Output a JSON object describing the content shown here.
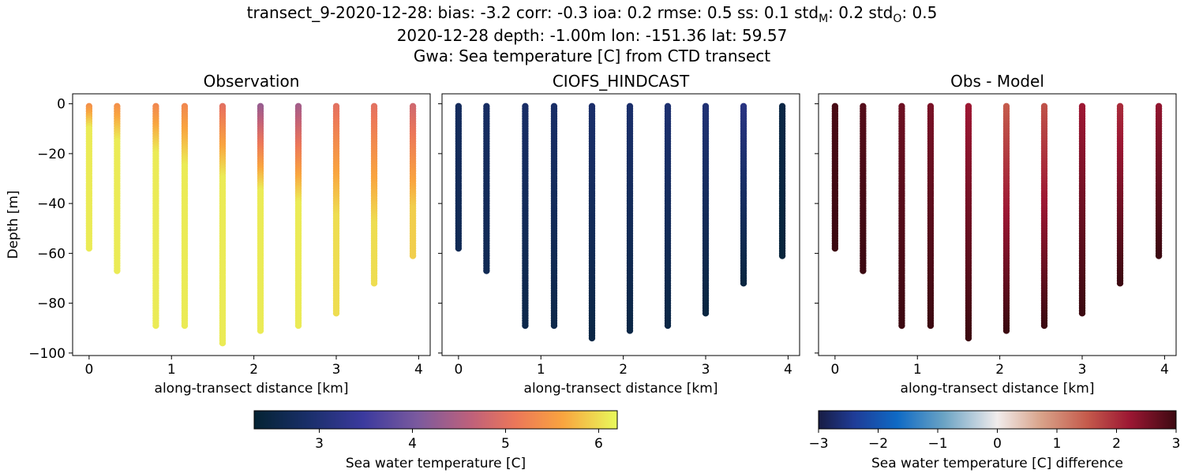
{
  "figure": {
    "title_prefix": "transect_9-2020-12-28: bias: -3.2  corr: -0.3  ioa: 0.2  rmse: 0.5  ss: 0.1  std",
    "title_sub_m": "M",
    "title_mid": ": 0.2  std",
    "title_sub_o": "O",
    "title_end": ": 0.5",
    "title_line2": "2020-12-28 depth: -1.00m lon: -151.36 lat: 59.57",
    "title_line3": "Gwa: Sea temperature [C] from CTD transect"
  },
  "chart_data": [
    {
      "type": "scatter",
      "title": "Observation",
      "xlabel": "along-transect distance [km]",
      "ylabel": "Depth [m]",
      "xlim": [
        -0.2,
        4.14
      ],
      "ylim": [
        -101,
        4
      ],
      "xticks": [
        "0",
        "1",
        "2",
        "3",
        "4"
      ],
      "yticks": [
        "0",
        "−20",
        "−40",
        "−60",
        "−80",
        "−100"
      ],
      "colormap": "thermal",
      "clim": [
        2.3,
        6.2
      ],
      "profiles": [
        {
          "x": 0.0,
          "max_depth": -58,
          "surface_value": 5.4,
          "deep_value": 6.1,
          "transition_depth": -10
        },
        {
          "x": 0.34,
          "max_depth": -67,
          "surface_value": 5.4,
          "deep_value": 6.1,
          "transition_depth": -15
        },
        {
          "x": 0.81,
          "max_depth": -89,
          "surface_value": 5.3,
          "deep_value": 6.1,
          "transition_depth": -20
        },
        {
          "x": 1.16,
          "max_depth": -89,
          "surface_value": 5.3,
          "deep_value": 6.1,
          "transition_depth": -25
        },
        {
          "x": 1.62,
          "max_depth": -96,
          "surface_value": 5.0,
          "deep_value": 6.1,
          "transition_depth": -30
        },
        {
          "x": 2.08,
          "max_depth": -91,
          "surface_value": 4.3,
          "deep_value": 6.1,
          "transition_depth": -35
        },
        {
          "x": 2.54,
          "max_depth": -89,
          "surface_value": 4.4,
          "deep_value": 6.1,
          "transition_depth": -40
        },
        {
          "x": 3.0,
          "max_depth": -84,
          "surface_value": 5.0,
          "deep_value": 6.0,
          "transition_depth": -45
        },
        {
          "x": 3.46,
          "max_depth": -72,
          "surface_value": 5.0,
          "deep_value": 6.0,
          "transition_depth": -48
        },
        {
          "x": 3.93,
          "max_depth": -61,
          "surface_value": 4.8,
          "deep_value": 5.9,
          "transition_depth": -42
        }
      ]
    },
    {
      "type": "scatter",
      "title": "CIOFS_HINDCAST",
      "xlabel": "along-transect distance [km]",
      "xlim": [
        -0.2,
        4.14
      ],
      "ylim": [
        -101,
        4
      ],
      "xticks": [
        "0",
        "1",
        "2",
        "3",
        "4"
      ],
      "colormap": "thermal",
      "clim": [
        2.3,
        6.2
      ],
      "profiles": [
        {
          "x": 0.0,
          "max_depth": -58,
          "surface_value": 2.75,
          "deep_value": 2.65
        },
        {
          "x": 0.34,
          "max_depth": -67,
          "surface_value": 2.8,
          "deep_value": 2.65
        },
        {
          "x": 0.81,
          "max_depth": -89,
          "surface_value": 2.85,
          "deep_value": 2.55
        },
        {
          "x": 1.16,
          "max_depth": -89,
          "surface_value": 2.85,
          "deep_value": 2.55
        },
        {
          "x": 1.62,
          "max_depth": -94,
          "surface_value": 2.9,
          "deep_value": 2.5
        },
        {
          "x": 2.08,
          "max_depth": -91,
          "surface_value": 2.9,
          "deep_value": 2.5
        },
        {
          "x": 2.54,
          "max_depth": -89,
          "surface_value": 2.95,
          "deep_value": 2.5
        },
        {
          "x": 3.0,
          "max_depth": -84,
          "surface_value": 3.0,
          "deep_value": 2.45
        },
        {
          "x": 3.46,
          "max_depth": -72,
          "surface_value": 3.15,
          "deep_value": 2.45
        },
        {
          "x": 3.93,
          "max_depth": -61,
          "surface_value": 2.5,
          "deep_value": 2.4
        }
      ]
    },
    {
      "type": "scatter",
      "title": "Obs - Model",
      "xlabel": "along-transect distance [km]",
      "xlim": [
        -0.2,
        4.14
      ],
      "ylim": [
        -101,
        4
      ],
      "xticks": [
        "0",
        "1",
        "2",
        "3",
        "4"
      ],
      "colormap": "balance",
      "clim": [
        -3,
        3
      ],
      "profiles": [
        {
          "x": 0.0,
          "max_depth": -58,
          "surface_value": 2.9,
          "deep_value": 3.0
        },
        {
          "x": 0.34,
          "max_depth": -67,
          "surface_value": 2.8,
          "deep_value": 3.0
        },
        {
          "x": 0.81,
          "max_depth": -89,
          "surface_value": 2.6,
          "deep_value": 3.0
        },
        {
          "x": 1.16,
          "max_depth": -89,
          "surface_value": 2.5,
          "deep_value": 3.0
        },
        {
          "x": 1.62,
          "max_depth": -94,
          "surface_value": 2.2,
          "deep_value": 3.0
        },
        {
          "x": 2.08,
          "max_depth": -91,
          "surface_value": 1.5,
          "deep_value": 3.0
        },
        {
          "x": 2.54,
          "max_depth": -89,
          "surface_value": 1.6,
          "deep_value": 3.0
        },
        {
          "x": 3.0,
          "max_depth": -84,
          "surface_value": 2.2,
          "deep_value": 3.0
        },
        {
          "x": 3.46,
          "max_depth": -72,
          "surface_value": 2.0,
          "deep_value": 3.0
        },
        {
          "x": 3.93,
          "max_depth": -61,
          "surface_value": 2.3,
          "deep_value": 3.0
        }
      ]
    }
  ],
  "colorbars": [
    {
      "label": "Sea water temperature [C]",
      "ticks": [
        "3",
        "4",
        "5",
        "6"
      ],
      "tick_values": [
        3,
        4,
        5,
        6
      ],
      "range": [
        2.3,
        6.2
      ],
      "colormap": "thermal"
    },
    {
      "label": "Sea water temperature [C] difference",
      "ticks": [
        "−3",
        "−2",
        "−1",
        "0",
        "1",
        "2",
        "3"
      ],
      "tick_values": [
        -3,
        -2,
        -1,
        0,
        1,
        2,
        3
      ],
      "range": [
        -3,
        3
      ],
      "colormap": "balance"
    }
  ]
}
